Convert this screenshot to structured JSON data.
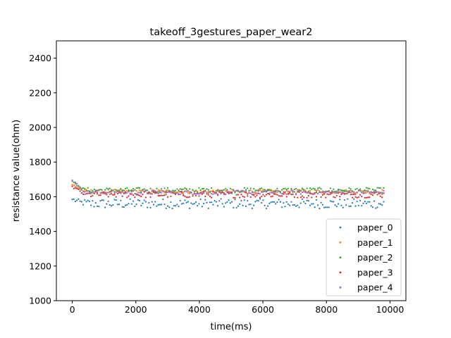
{
  "chart_data": {
    "type": "scatter",
    "title": "takeoff_3gestures_paper_wear2",
    "xlabel": "time(ms)",
    "ylabel": "resistance value(ohm)",
    "xlim": [
      -500,
      10500
    ],
    "ylim": [
      1000,
      2500
    ],
    "xticks": [
      0,
      2000,
      4000,
      6000,
      8000,
      10000
    ],
    "yticks": [
      1000,
      1200,
      1400,
      1600,
      1800,
      2000,
      2200,
      2400
    ],
    "legend": "lower-right",
    "grid": false,
    "x_range": [
      0,
      9800
    ],
    "series": [
      {
        "name": "paper_0",
        "color": "#1f77b4",
        "first": 1585,
        "center": 1560,
        "spread": 28,
        "count": 200
      },
      {
        "name": "paper_1",
        "color": "#ff7f0e",
        "first": 1670,
        "center": 1630,
        "spread": 12,
        "count": 200
      },
      {
        "name": "paper_2",
        "color": "#2ca02c",
        "first": 1690,
        "center": 1638,
        "spread": 14,
        "count": 200
      },
      {
        "name": "paper_3",
        "color": "#d62728",
        "first": 1660,
        "center": 1612,
        "spread": 18,
        "count": 200
      },
      {
        "name": "paper_4",
        "color": "#9467bd",
        "first": 1695,
        "center": 1625,
        "spread": 12,
        "count": 200
      }
    ]
  }
}
